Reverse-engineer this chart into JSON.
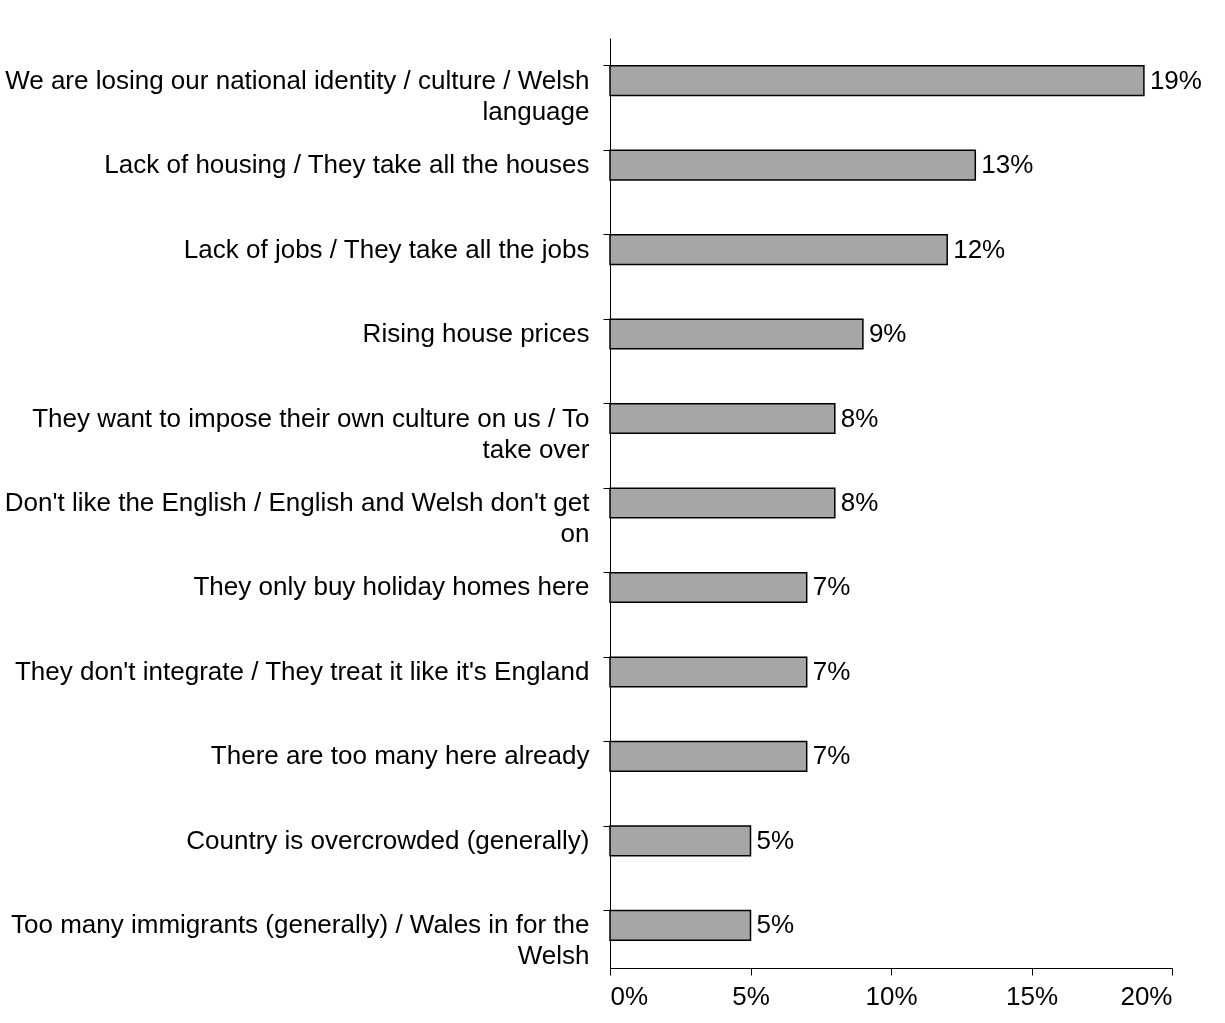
{
  "chart_data": {
    "type": "bar",
    "orientation": "horizontal",
    "categories": [
      "We are losing our national identity / culture / Welsh language",
      "Lack of housing / They take all the houses",
      "Lack of jobs / They take all the jobs",
      "Rising house prices",
      "They want to impose their own culture on us / To take over",
      "Don't like the English / English and Welsh don't get on",
      "They only buy holiday homes here",
      "They don't integrate / They treat it like it's England",
      "There are too many here already",
      "Country is overcrowded (generally)",
      "Too many immigrants (generally) / Wales in for the Welsh"
    ],
    "values": [
      19,
      13,
      12,
      9,
      8,
      8,
      7,
      7,
      7,
      5,
      5
    ],
    "value_labels": [
      "19%",
      "13%",
      "12%",
      "9%",
      "8%",
      "8%",
      "7%",
      "7%",
      "7%",
      "5%",
      "5%"
    ],
    "color": "#a6a6a6",
    "xlim": [
      0,
      20
    ],
    "xticks": [
      {
        "value": 0,
        "label": "0%"
      },
      {
        "value": 5,
        "label": "5%"
      },
      {
        "value": 10,
        "label": "10%"
      },
      {
        "value": 15,
        "label": "15%"
      },
      {
        "value": 20,
        "label": "20%"
      }
    ],
    "grid": false,
    "legend": false
  }
}
